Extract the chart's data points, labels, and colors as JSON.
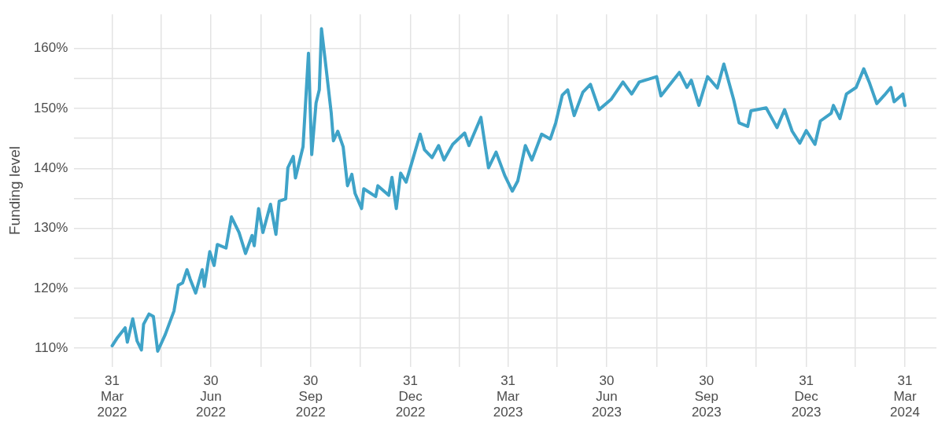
{
  "chart_data": {
    "type": "line",
    "ylabel": "Funding level",
    "grid": true,
    "legend": false,
    "marker": "none",
    "line_style": "solid",
    "xlim": [
      "2022-02-24",
      "2024-04-29"
    ],
    "xticks": [
      {
        "value": "2022-03-31",
        "label": "31\nMar\n2022"
      },
      {
        "value": "2022-05-15",
        "label": null
      },
      {
        "value": "2022-06-30",
        "label": "30\nJun\n2022"
      },
      {
        "value": "2022-08-15",
        "label": null
      },
      {
        "value": "2022-09-30",
        "label": "30\nSep\n2022"
      },
      {
        "value": "2022-11-15",
        "label": null
      },
      {
        "value": "2022-12-31",
        "label": "31\nDec\n2022"
      },
      {
        "value": "2023-02-14",
        "label": null
      },
      {
        "value": "2023-03-31",
        "label": "31\nMar\n2023"
      },
      {
        "value": "2023-05-15",
        "label": null
      },
      {
        "value": "2023-06-30",
        "label": "30\nJun\n2023"
      },
      {
        "value": "2023-08-15",
        "label": null
      },
      {
        "value": "2023-09-30",
        "label": "30\nSep\n2023"
      },
      {
        "value": "2023-11-15",
        "label": null
      },
      {
        "value": "2023-12-31",
        "label": "31\nDec\n2023"
      },
      {
        "value": "2024-02-14",
        "label": null
      },
      {
        "value": "2024-03-31",
        "label": "31\nMar\n2024"
      }
    ],
    "ylim": [
      106.9,
      165.7
    ],
    "yticks": [
      {
        "value": 110,
        "label": "110%"
      },
      {
        "value": 115,
        "label": null
      },
      {
        "value": 120,
        "label": "120%"
      },
      {
        "value": 125,
        "label": null
      },
      {
        "value": 130,
        "label": "130%"
      },
      {
        "value": 135,
        "label": null
      },
      {
        "value": 140,
        "label": "140%"
      },
      {
        "value": 145,
        "label": null
      },
      {
        "value": 150,
        "label": "150%"
      },
      {
        "value": 155,
        "label": null
      },
      {
        "value": 160,
        "label": "160%"
      }
    ],
    "x": [
      "2022-03-31",
      "2022-04-05",
      "2022-04-12",
      "2022-04-14",
      "2022-04-19",
      "2022-04-23",
      "2022-04-27",
      "2022-04-29",
      "2022-05-04",
      "2022-05-08",
      "2022-05-12",
      "2022-05-19",
      "2022-05-27",
      "2022-05-31",
      "2022-06-04",
      "2022-06-08",
      "2022-06-11",
      "2022-06-16",
      "2022-06-22",
      "2022-06-24",
      "2022-06-29",
      "2022-07-03",
      "2022-07-06",
      "2022-07-14",
      "2022-07-19",
      "2022-07-26",
      "2022-08-01",
      "2022-08-07",
      "2022-08-09",
      "2022-08-13",
      "2022-08-17",
      "2022-08-24",
      "2022-08-29",
      "2022-09-01",
      "2022-09-07",
      "2022-09-09",
      "2022-09-14",
      "2022-09-16",
      "2022-09-23",
      "2022-09-28",
      "2022-10-01",
      "2022-10-05",
      "2022-10-08",
      "2022-10-10",
      "2022-10-13",
      "2022-10-19",
      "2022-10-21",
      "2022-10-25",
      "2022-10-30",
      "2022-11-03",
      "2022-11-07",
      "2022-11-10",
      "2022-11-16",
      "2022-11-18",
      "2022-11-29",
      "2022-12-01",
      "2022-12-11",
      "2022-12-14",
      "2022-12-18",
      "2022-12-22",
      "2022-12-27",
      "2023-01-02",
      "2023-01-09",
      "2023-01-13",
      "2023-01-20",
      "2023-01-26",
      "2023-01-31",
      "2023-02-08",
      "2023-02-19",
      "2023-02-23",
      "2023-03-06",
      "2023-03-13",
      "2023-03-20",
      "2023-03-28",
      "2023-04-04",
      "2023-04-09",
      "2023-04-16",
      "2023-04-22",
      "2023-05-01",
      "2023-05-09",
      "2023-05-14",
      "2023-05-20",
      "2023-05-25",
      "2023-05-31",
      "2023-06-08",
      "2023-06-15",
      "2023-06-23",
      "2023-07-04",
      "2023-07-15",
      "2023-07-23",
      "2023-07-30",
      "2023-08-15",
      "2023-08-19",
      "2023-08-29",
      "2023-09-05",
      "2023-09-12",
      "2023-09-16",
      "2023-09-23",
      "2023-10-01",
      "2023-10-10",
      "2023-10-16",
      "2023-10-25",
      "2023-10-30",
      "2023-11-07",
      "2023-11-10",
      "2023-11-24",
      "2023-12-04",
      "2023-12-11",
      "2023-12-18",
      "2023-12-25",
      "2023-12-31",
      "2024-01-08",
      "2024-01-13",
      "2024-01-23",
      "2024-01-25",
      "2024-01-31",
      "2024-02-06",
      "2024-02-15",
      "2024-02-22",
      "2024-02-27",
      "2024-03-05",
      "2024-03-12",
      "2024-03-18",
      "2024-03-21",
      "2024-03-29",
      "2024-03-31"
    ],
    "series": [
      {
        "color": "#3fa3c8",
        "values": [
          110.4,
          111.8,
          113.4,
          111.0,
          114.9,
          111.2,
          109.7,
          114.0,
          115.7,
          115.3,
          109.5,
          112.3,
          116.2,
          120.5,
          120.9,
          123.1,
          121.5,
          119.2,
          123.1,
          120.3,
          126.1,
          123.8,
          127.3,
          126.7,
          131.9,
          129.3,
          125.8,
          128.8,
          127.1,
          133.3,
          129.3,
          134.0,
          129.0,
          134.5,
          134.9,
          140.1,
          142.0,
          138.4,
          143.6,
          159.2,
          142.3,
          150.9,
          153.1,
          163.3,
          158.7,
          149.2,
          144.6,
          146.2,
          143.6,
          137.1,
          139.0,
          135.8,
          133.3,
          136.6,
          135.3,
          137.1,
          135.5,
          138.5,
          133.3,
          139.2,
          137.7,
          141.4,
          145.7,
          143.1,
          141.8,
          143.8,
          141.4,
          144.0,
          145.9,
          143.8,
          148.5,
          140.1,
          142.7,
          138.8,
          136.2,
          137.9,
          143.8,
          141.4,
          145.7,
          144.9,
          147.6,
          152.2,
          153.1,
          148.8,
          152.7,
          154.0,
          149.8,
          151.5,
          154.4,
          152.4,
          154.4,
          155.3,
          152.1,
          154.4,
          156.0,
          153.5,
          154.7,
          150.5,
          155.3,
          153.4,
          157.4,
          151.5,
          147.6,
          147.0,
          149.6,
          150.1,
          146.8,
          149.8,
          146.2,
          144.2,
          146.3,
          144.0,
          147.9,
          149.2,
          150.5,
          148.3,
          152.4,
          153.5,
          156.6,
          154.4,
          150.8,
          152.2,
          153.5,
          151.1,
          152.4,
          150.5
        ]
      }
    ]
  }
}
